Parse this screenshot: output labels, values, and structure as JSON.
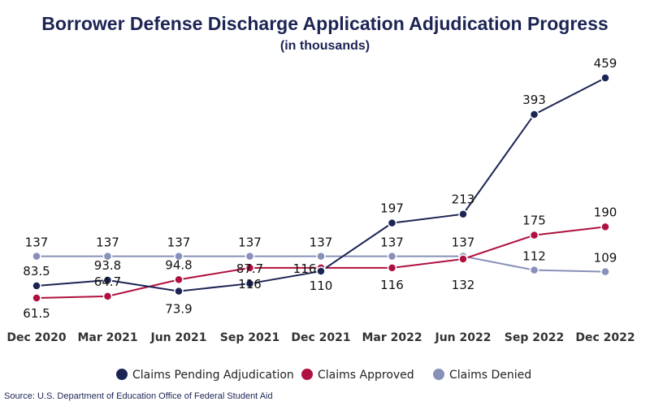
{
  "chart_data": {
    "type": "line",
    "title": "Borrower Defense Discharge Application Adjudication Progress",
    "subtitle": "(in thousands)",
    "categories": [
      "Dec 2020",
      "Mar 2021",
      "Jun 2021",
      "Sep 2021",
      "Dec 2021",
      "Mar 2022",
      "Jun 2022",
      "Sep 2022",
      "Dec 2022"
    ],
    "series": [
      {
        "name": "Claims Pending Adjudication",
        "color": "#1c2454",
        "values": [
          83.5,
          93.8,
          73.9,
          87.7,
          110,
          197,
          213,
          393,
          459
        ]
      },
      {
        "name": "Claims Approved",
        "color": "#b0103f",
        "values": [
          61.5,
          64.7,
          94.8,
          116,
          116,
          116,
          132,
          175,
          190
        ]
      },
      {
        "name": "Claims Denied",
        "color": "#8790b8",
        "values": [
          137,
          137,
          137,
          137,
          137,
          137,
          137,
          112,
          109
        ]
      }
    ],
    "legend_placement": "bottom",
    "grid": false,
    "y_axis_visible": false
  },
  "source": "Source: U.S. Department of Education Office of Federal Student Aid"
}
